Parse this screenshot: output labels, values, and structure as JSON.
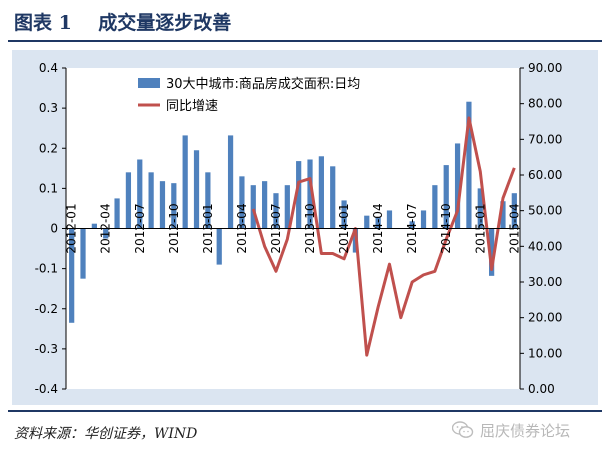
{
  "figure": {
    "title": "图表 1    成交量逐步改善",
    "source": "资料来源：华创证券，WIND",
    "watermark": "屈庆债券论坛",
    "watermark_icon": "wechat-icon"
  },
  "colors": {
    "background": "#dbe5f1",
    "bar": "#4f81bd",
    "line": "#c0504d",
    "axis": "#000000",
    "title": "#1f3864"
  },
  "chart_data": {
    "type": "bar+line",
    "series": [
      {
        "name": "30大中城市:商品房成交面积:日均",
        "type": "bar",
        "axis": "left",
        "values": [
          -0.235,
          -0.125,
          0.012,
          -0.025,
          0.075,
          0.14,
          0.172,
          0.14,
          0.118,
          0.113,
          0.232,
          0.195,
          0.14,
          -0.09,
          0.232,
          0.13,
          0.108,
          0.118,
          0.088,
          0.108,
          0.168,
          0.172,
          0.18,
          0.155,
          0.07,
          -0.06,
          0.032,
          0.028,
          0.045,
          0.0,
          0.018,
          0.045,
          0.108,
          0.158,
          0.212,
          0.316,
          0.1,
          -0.118,
          0.068,
          0.088
        ]
      },
      {
        "name": "同比增速",
        "type": "line",
        "axis": "right",
        "values": [
          null,
          null,
          null,
          null,
          null,
          null,
          null,
          null,
          null,
          null,
          null,
          null,
          null,
          null,
          null,
          null,
          50.5,
          40.0,
          33.0,
          42.0,
          58.0,
          59.0,
          38.0,
          38.0,
          36.5,
          45.0,
          9.5,
          23.0,
          35.0,
          20.0,
          30.0,
          32.0,
          33.0,
          42.0,
          50.0,
          76.0,
          61.0,
          33.5,
          53.5,
          62.0
        ]
      }
    ],
    "tick_labels": [
      "2012-01",
      "2012-04",
      "2012-07",
      "2012-10",
      "2013-01",
      "2013-04",
      "2013-07",
      "2013-10",
      "2014-01",
      "2014-04",
      "2014-07",
      "2014-10",
      "2015-01",
      "2015-04"
    ],
    "tick_every": 3,
    "y_left": {
      "min": -0.4,
      "max": 0.4,
      "step": 0.1,
      "ticks": [
        "-0.4",
        "-0.3",
        "-0.2",
        "-0.1",
        "0",
        "0.1",
        "0.2",
        "0.3",
        "0.4"
      ]
    },
    "y_right": {
      "min": 0,
      "max": 90,
      "step": 10,
      "ticks": [
        "0.00",
        "10.00",
        "20.00",
        "30.00",
        "40.00",
        "50.00",
        "60.00",
        "70.00",
        "80.00",
        "90.00"
      ]
    },
    "grid": false,
    "legend_position": "top-center"
  }
}
